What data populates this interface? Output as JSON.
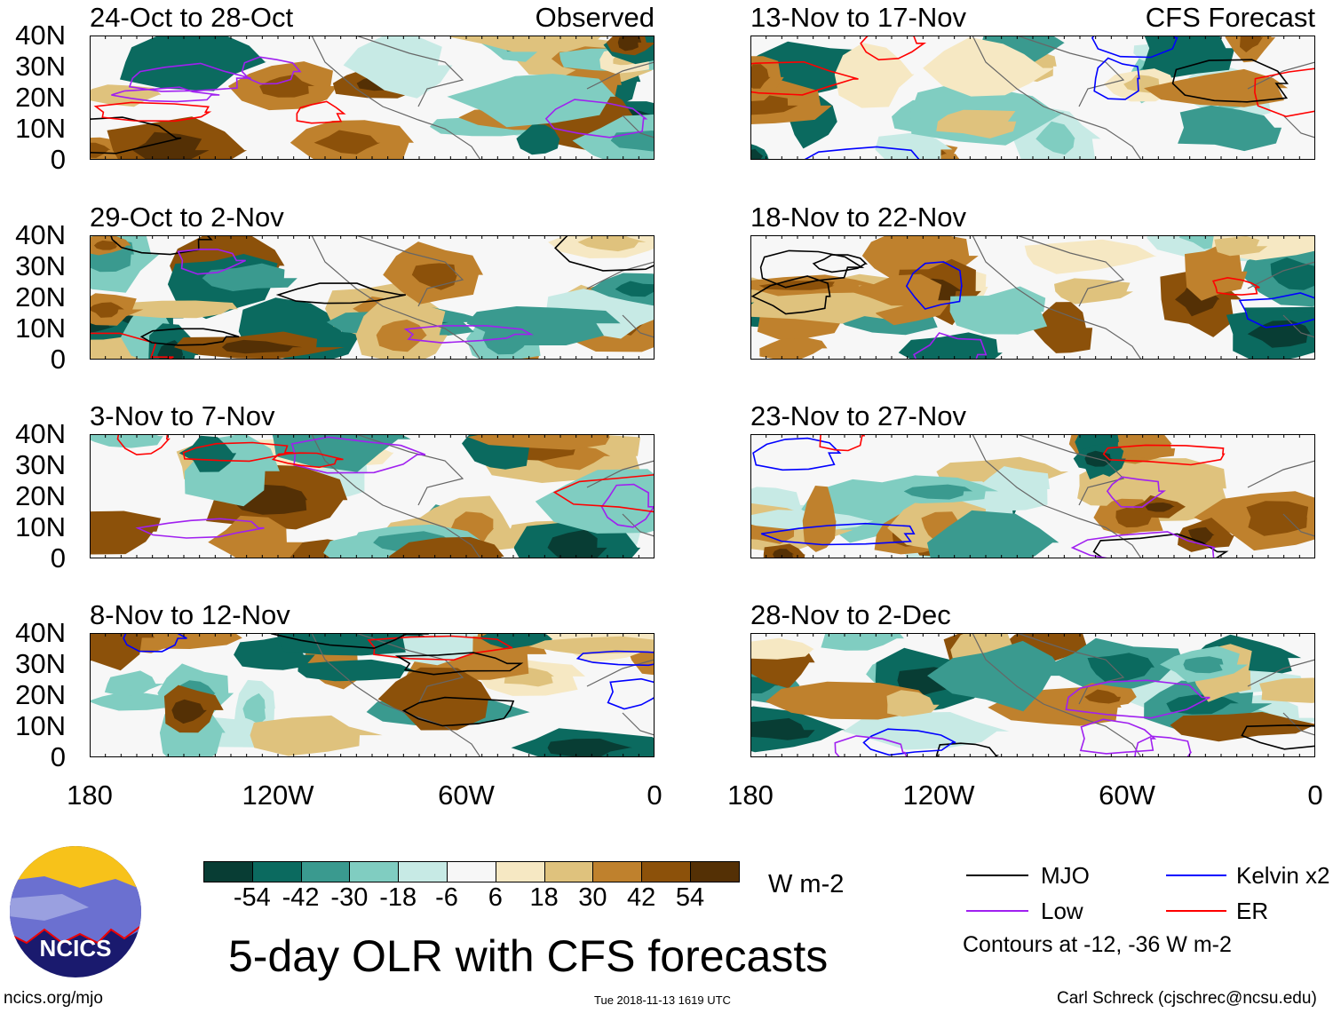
{
  "chart_data": {
    "type": "heatmap",
    "title": "5-day OLR with CFS forecasts",
    "units": "W m-2",
    "contours_note": "Contours at -12, -36 W m-2",
    "columns": [
      {
        "label": "Observed",
        "panels": [
          "24-Oct to 28-Oct",
          "29-Oct to 2-Nov",
          "3-Nov to 7-Nov",
          "8-Nov to 12-Nov"
        ]
      },
      {
        "label": "CFS Forecast",
        "panels": [
          "13-Nov to 17-Nov",
          "18-Nov to 22-Nov",
          "23-Nov to 27-Nov",
          "28-Nov to 2-Dec"
        ]
      }
    ],
    "y_ticks": [
      "40N",
      "30N",
      "20N",
      "10N",
      "0"
    ],
    "x_ticks": [
      "180",
      "120W",
      "60W",
      "0"
    ],
    "colorbar": {
      "ticks": [
        "-54",
        "-42",
        "-30",
        "-18",
        "-6",
        "6",
        "18",
        "30",
        "42",
        "54"
      ],
      "colors": [
        "#083d34",
        "#0b6a5f",
        "#3a9a8f",
        "#80cdc1",
        "#c7eae5",
        "#f7f7f7",
        "#f6e8c3",
        "#dfc27d",
        "#bf812d",
        "#8c510a",
        "#543005"
      ]
    },
    "legend": [
      {
        "label": "MJO",
        "color": "#000000"
      },
      {
        "label": "Kelvin x2",
        "color": "#0000ff"
      },
      {
        "label": "Low",
        "color": "#a020f0"
      },
      {
        "label": "ER",
        "color": "#ff0000"
      }
    ]
  },
  "footer": {
    "url": "ncics.org/mjo",
    "timestamp": "Tue 2018-11-13 1619 UTC",
    "author": "Carl Schreck (cjschrec@ncsu.edu)",
    "logo_text": "NCICS"
  }
}
